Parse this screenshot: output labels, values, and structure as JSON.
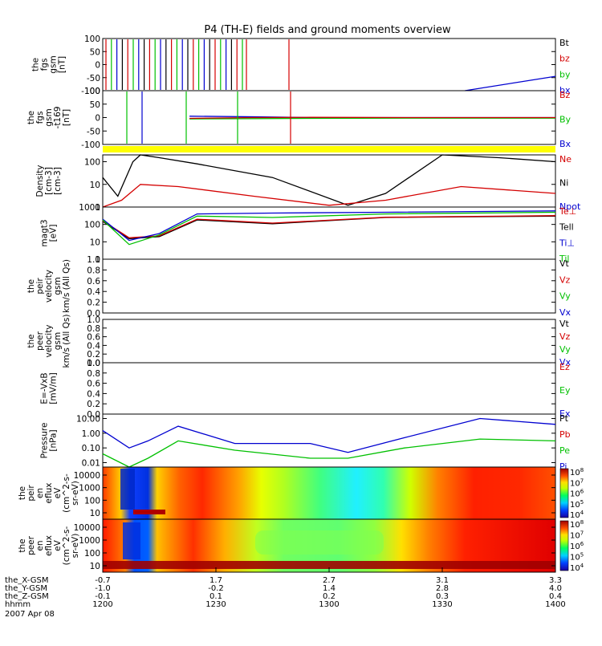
{
  "title": "P4 (TH-E) fields and ground moments overview",
  "chart_data": [
    {
      "type": "line",
      "id": "fgs",
      "ylabel": [
        "the",
        "fgs",
        "gsm",
        "[nT]"
      ],
      "ylim": [
        -100,
        100
      ],
      "y_ticks": [
        "100",
        "50",
        "0",
        "-50",
        "-100"
      ],
      "legend": [
        "Bt",
        "bz",
        "by",
        "bx"
      ],
      "legend_colors": [
        "#000000",
        "#d40000",
        "#00c000",
        "#0000d0"
      ],
      "notes": "Strongly saturated/oscillating near 12:00–12:25 (beyond ±100 nT); bx ramps from about -100 near 13:36 to about -45 at 14:00."
    },
    {
      "type": "line",
      "id": "fgs_sm",
      "ylabel": [
        "the",
        "fgs",
        "gsm",
        "-t169",
        "[nT]"
      ],
      "ylim": [
        -100,
        100
      ],
      "y_ticks": [
        "100",
        "50",
        "0",
        "-50",
        "-100"
      ],
      "legend": [
        "Bz",
        "By",
        "Bx"
      ],
      "legend_colors": [
        "#d40000",
        "#00c000",
        "#0000d0"
      ],
      "series": [
        {
          "name": "Bx",
          "x_hhmm": [
            "12:23",
            "12:40",
            "12:55",
            "13:20",
            "14:00"
          ],
          "values": [
            5,
            3,
            0,
            0,
            0
          ]
        },
        {
          "name": "By",
          "x_hhmm": [
            "12:23",
            "12:40",
            "12:55",
            "13:20",
            "14:00"
          ],
          "values": [
            -5,
            -4,
            -3,
            -2,
            -2
          ]
        },
        {
          "name": "Bz",
          "x_hhmm": [
            "12:23",
            "12:40",
            "12:55",
            "13:20",
            "14:00"
          ],
          "values": [
            -3,
            0,
            1,
            0,
            0
          ]
        }
      ]
    },
    {
      "type": "line",
      "id": "density",
      "ylabel": [
        "Density",
        "[cm-3]",
        "[cm-3]"
      ],
      "scale": "log",
      "ylim": [
        1,
        200
      ],
      "y_ticks": [
        "100",
        "10",
        "1"
      ],
      "legend": [
        "Ne",
        "Ni",
        "Npot"
      ],
      "legend_colors": [
        "#d40000",
        "#000000",
        "#0000d0"
      ],
      "series": [
        {
          "name": "Ni",
          "x_hhmm": [
            "12:00",
            "12:04",
            "12:08",
            "12:10",
            "12:15",
            "12:25",
            "12:45",
            "13:05",
            "13:15",
            "13:30",
            "13:45",
            "14:00"
          ],
          "values": [
            20,
            3,
            100,
            200,
            150,
            80,
            20,
            1.2,
            4,
            200,
            150,
            100
          ]
        },
        {
          "name": "Ne",
          "x_hhmm": [
            "12:00",
            "12:05",
            "12:10",
            "12:20",
            "12:40",
            "13:00",
            "13:15",
            "13:35",
            "14:00"
          ],
          "values": [
            1,
            2,
            10,
            8,
            3,
            1.2,
            2,
            8,
            4
          ]
        }
      ]
    },
    {
      "type": "line",
      "id": "temperature",
      "ylabel": [
        "magt3",
        "[eV]"
      ],
      "scale": "log",
      "ylim": [
        1,
        1000
      ],
      "y_ticks": [
        "1000",
        "100",
        "10",
        "1"
      ],
      "legend": [
        "Te⊥",
        "Tell",
        "Ti⊥",
        "Til"
      ],
      "legend_colors": [
        "#d40000",
        "#000000",
        "#0000d0",
        "#00c000"
      ],
      "series": [
        {
          "name": "Tell",
          "x_hhmm": [
            "12:00",
            "12:07",
            "12:15",
            "12:25",
            "12:45",
            "13:15",
            "14:00"
          ],
          "values": [
            150,
            15,
            20,
            180,
            110,
            250,
            300
          ]
        },
        {
          "name": "Te⊥",
          "x_hhmm": [
            "12:00",
            "12:07",
            "12:15",
            "12:25",
            "12:45",
            "13:15",
            "14:00"
          ],
          "values": [
            160,
            17,
            22,
            200,
            120,
            260,
            320
          ]
        },
        {
          "name": "Ti⊥",
          "x_hhmm": [
            "12:00",
            "12:07",
            "12:15",
            "12:25",
            "12:45",
            "13:15",
            "14:00"
          ],
          "values": [
            200,
            12,
            30,
            400,
            450,
            500,
            600
          ]
        },
        {
          "name": "Til",
          "x_hhmm": [
            "12:00",
            "12:07",
            "12:15",
            "12:25",
            "12:45",
            "13:15",
            "14:00"
          ],
          "values": [
            180,
            7,
            25,
            300,
            250,
            400,
            500
          ]
        }
      ]
    },
    {
      "type": "line",
      "id": "peir_velocity",
      "ylabel": [
        "the",
        "peir",
        "velocity",
        "gsm",
        "km/s (All Qs)"
      ],
      "ylim": [
        0,
        1
      ],
      "y_ticks": [
        "1.0",
        "0.8",
        "0.6",
        "0.4",
        "0.2",
        "0.0"
      ],
      "legend": [
        "Vt",
        "Vz",
        "Vy",
        "Vx"
      ],
      "legend_colors": [
        "#000000",
        "#d40000",
        "#00c000",
        "#0000d0"
      ]
    },
    {
      "type": "line",
      "id": "peer_velocity",
      "ylabel": [
        "the",
        "peer",
        "velocity",
        "gsm",
        "km/s (All Qs)"
      ],
      "ylim": [
        0,
        1
      ],
      "y_ticks": [
        "1.0",
        "0.8",
        "0.6",
        "0.4",
        "0.2",
        "0.0"
      ],
      "legend": [
        "Vt",
        "Vz",
        "Vy",
        "Vx"
      ],
      "legend_colors": [
        "#000000",
        "#d40000",
        "#00c000",
        "#0000d0"
      ]
    },
    {
      "type": "line",
      "id": "efield",
      "ylabel": [
        "E=-VxB",
        "[mV/m]"
      ],
      "ylim": [
        0,
        1
      ],
      "y_ticks": [
        "1.0",
        "0.8",
        "0.6",
        "0.4",
        "0.2",
        "0.0"
      ],
      "legend": [
        "Ez",
        "Ey",
        "Ex"
      ],
      "legend_colors": [
        "#d40000",
        "#00c000",
        "#0000d0"
      ]
    },
    {
      "type": "line",
      "id": "pressure",
      "ylabel": [
        "Pressure",
        "[nPa]"
      ],
      "scale": "log",
      "ylim": [
        0.005,
        20
      ],
      "y_ticks": [
        "10.00",
        "1.00",
        "0.10",
        "0.01"
      ],
      "legend": [
        "Pt",
        "Pb",
        "Pe",
        "Pi"
      ],
      "legend_colors": [
        "#000000",
        "#d40000",
        "#00c000",
        "#0000d0"
      ],
      "series": [
        {
          "name": "Pi",
          "x_hhmm": [
            "12:00",
            "12:07",
            "12:12",
            "12:20",
            "12:35",
            "12:55",
            "13:05",
            "13:20",
            "13:40",
            "14:00"
          ],
          "values": [
            1.5,
            0.1,
            0.3,
            3,
            0.2,
            0.2,
            0.05,
            0.5,
            10,
            4
          ]
        },
        {
          "name": "Pe",
          "x_hhmm": [
            "12:00",
            "12:07",
            "12:12",
            "12:20",
            "12:35",
            "12:55",
            "13:05",
            "13:20",
            "13:40",
            "14:00"
          ],
          "values": [
            0.04,
            0.005,
            0.02,
            0.3,
            0.07,
            0.02,
            0.02,
            0.1,
            0.4,
            0.3
          ]
        }
      ]
    },
    {
      "type": "heatmap",
      "id": "peir_eflux",
      "ylabel": [
        "the",
        "peir",
        "en",
        "eflux",
        "eV",
        "(cm^2-s-",
        "sr-eV)"
      ],
      "y_ticks": [
        "10000",
        "1000",
        "100",
        "10"
      ],
      "colorbar_ticks": [
        "10^8",
        "10^7",
        "10^6",
        "10^5",
        "10^4"
      ]
    },
    {
      "type": "heatmap",
      "id": "peer_eflux",
      "ylabel": [
        "the",
        "peer",
        "en",
        "eflux",
        "eV",
        "(cm^2-s-",
        "sr-eV)"
      ],
      "y_ticks": [
        "10000",
        "1000",
        "100",
        "10"
      ],
      "colorbar_ticks": [
        "10^8",
        "10^7",
        "10^6",
        "10^5",
        "10^4"
      ]
    }
  ],
  "x_axis": {
    "rows": [
      {
        "label": "the_X-GSM",
        "values": [
          "-0.7",
          "1.7",
          "2.7",
          "3.1",
          "3.3"
        ]
      },
      {
        "label": "the_Y-GSM",
        "values": [
          "-1.0",
          "-0.2",
          "1.4",
          "2.8",
          "4.0"
        ]
      },
      {
        "label": "the_Z-GSM",
        "values": [
          "-0.1",
          "0.1",
          "0.2",
          "0.3",
          "0.4"
        ]
      },
      {
        "label": "hhmm",
        "values": [
          "1200",
          "1230",
          "1300",
          "1330",
          "1400"
        ]
      }
    ],
    "date": "2007 Apr 08"
  }
}
